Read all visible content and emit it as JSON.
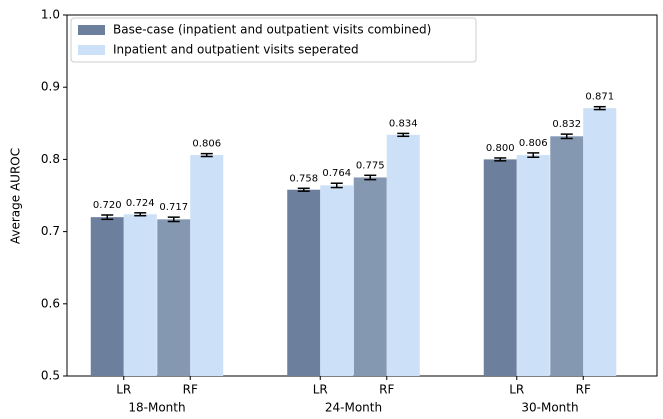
{
  "chart_data": {
    "type": "bar",
    "ylabel": "Average AUROC",
    "categories": [
      "LR",
      "RF",
      "LR",
      "RF",
      "LR",
      "RF"
    ],
    "groups": [
      "18-Month",
      "24-Month",
      "30-Month"
    ],
    "series": [
      {
        "name": "Base-case (inpatient and outpatient visits combined)",
        "color": "#6c7f9c",
        "colors": [
          "#6c7f9c",
          "#8598b2",
          "#6c7f9c",
          "#8598b2",
          "#6c7f9c",
          "#8598b2"
        ],
        "values": [
          0.72,
          0.717,
          0.758,
          0.775,
          0.8,
          0.832
        ],
        "value_labels": [
          "0.720",
          "0.717",
          "0.758",
          "0.775",
          "0.800",
          "0.832"
        ],
        "errors": [
          0.003,
          0.003,
          0.002,
          0.003,
          0.002,
          0.003
        ]
      },
      {
        "name": "Inpatient and outpatient visits seperated",
        "color": "#cce0f7",
        "values": [
          0.724,
          0.806,
          0.764,
          0.834,
          0.806,
          0.871
        ],
        "value_labels": [
          "0.724",
          "0.806",
          "0.764",
          "0.834",
          "0.806",
          "0.871"
        ],
        "errors": [
          0.002,
          0.002,
          0.003,
          0.002,
          0.003,
          0.002
        ]
      }
    ],
    "ylim": [
      0.5,
      1.0
    ],
    "yticks": [
      0.5,
      0.6,
      0.7,
      0.8,
      0.9,
      {
        "value": 1.0,
        "label": "1.0"
      }
    ],
    "legend": "upper left"
  }
}
